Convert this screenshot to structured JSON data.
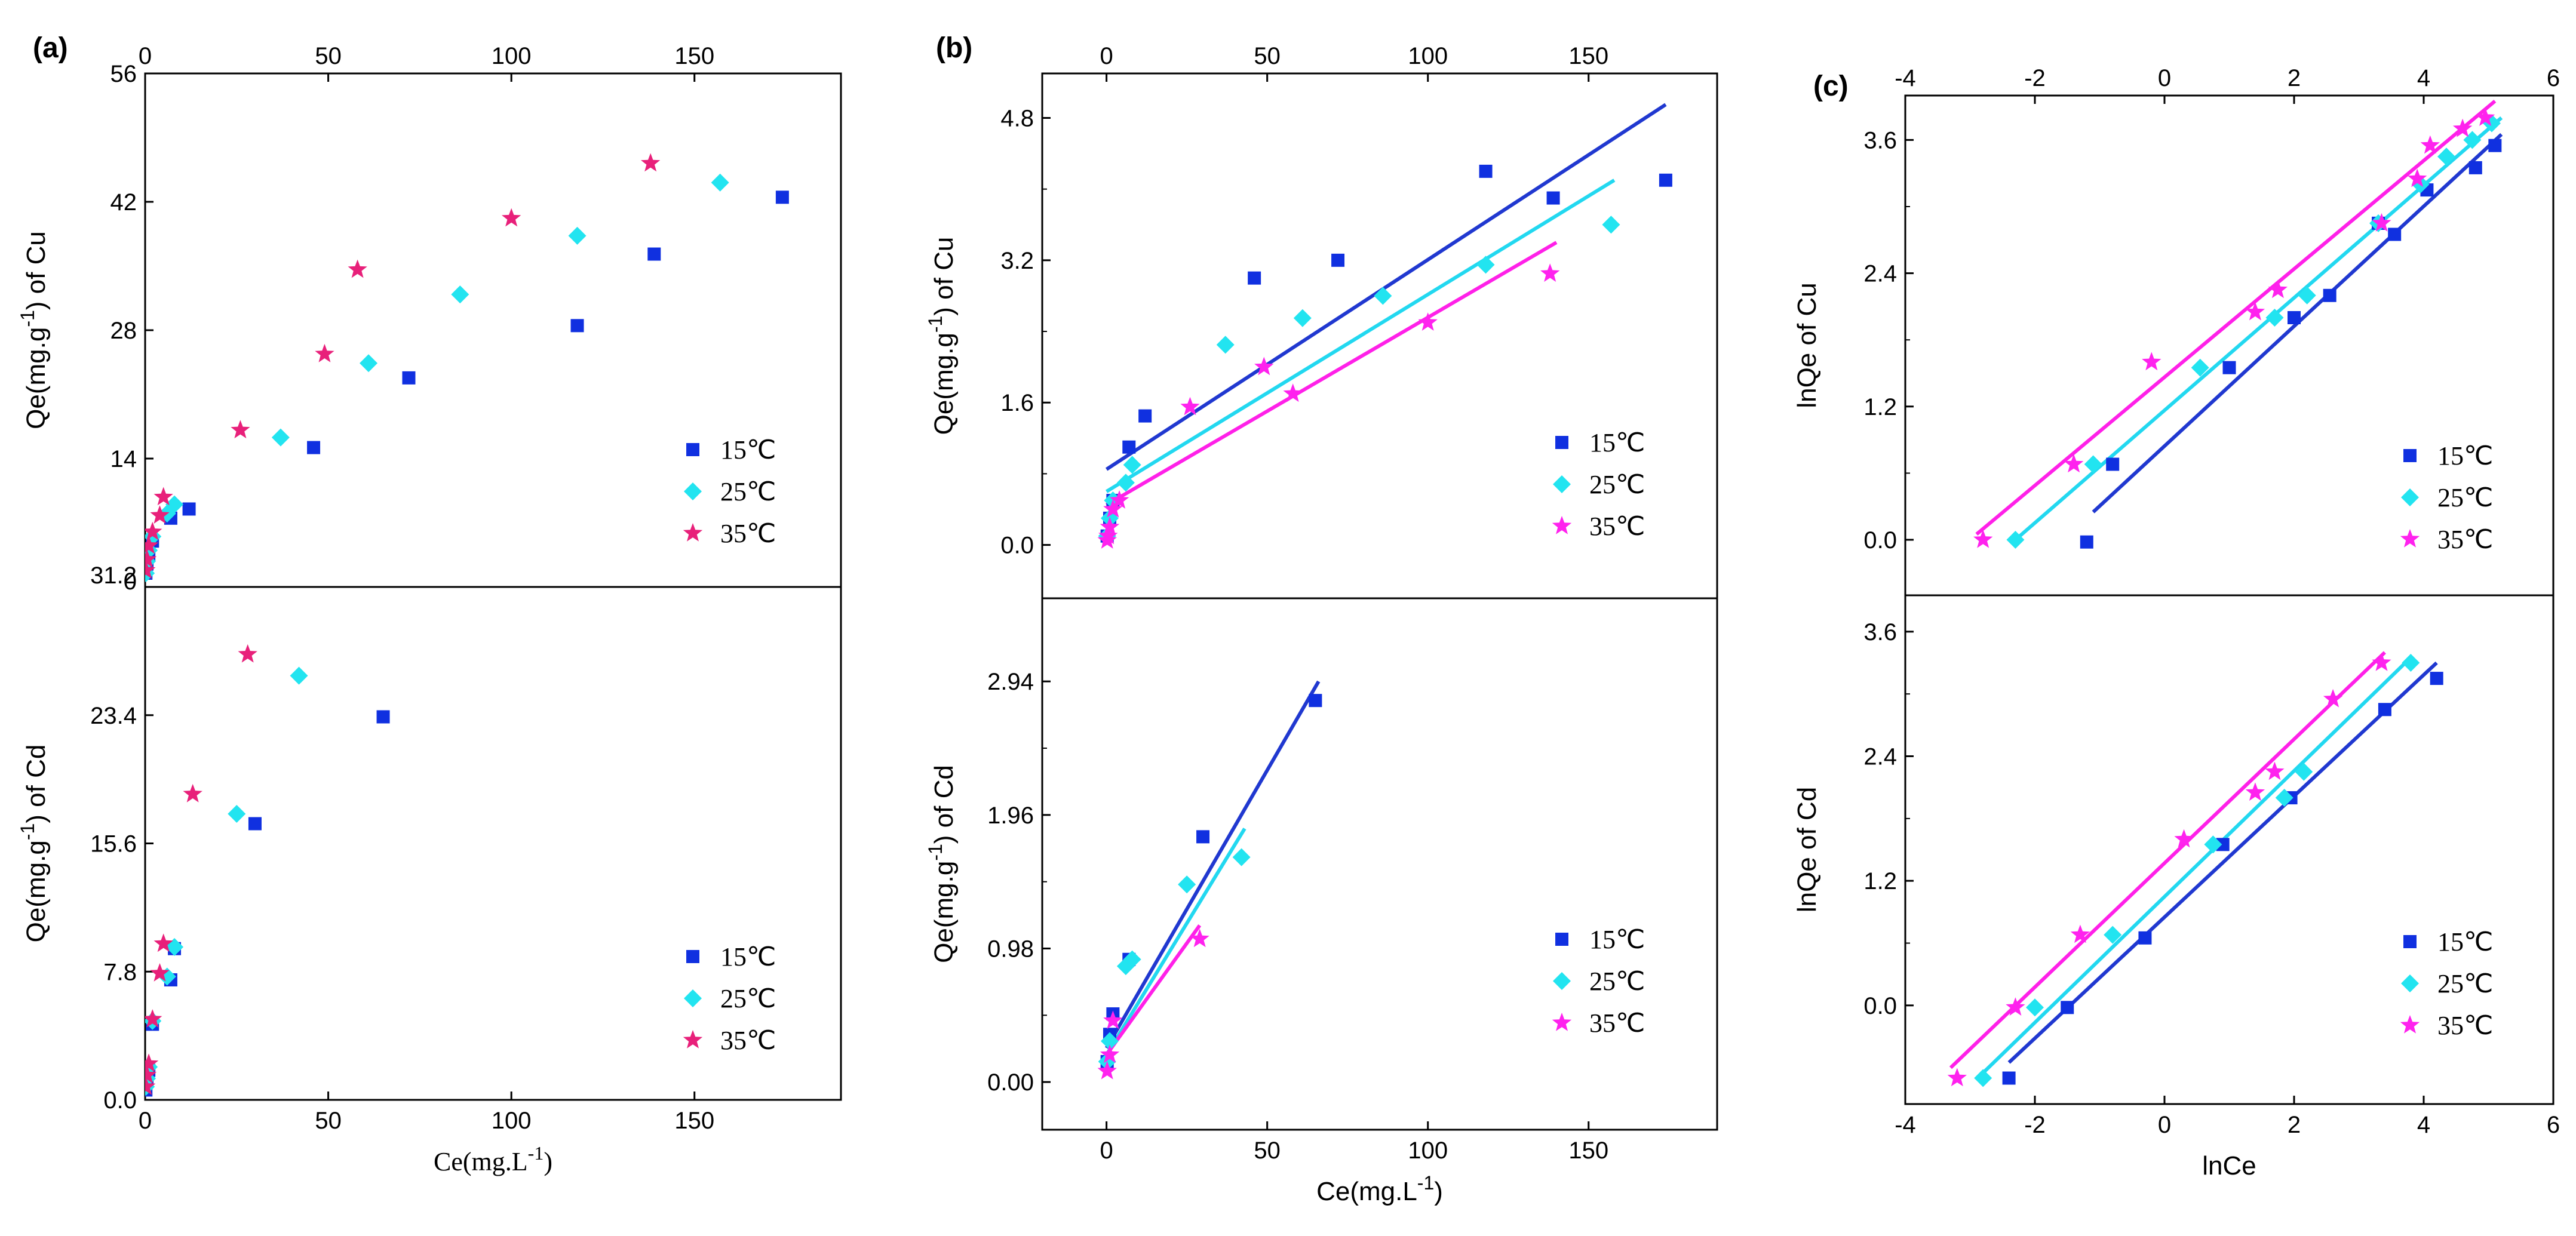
{
  "colors": {
    "c15": "#1030e0",
    "c25": "#22e4f0",
    "c35": "#e8207a",
    "c35b": "#ff22ee",
    "fit15": "#2038d0",
    "fit25": "#22d8f0",
    "fit35": "#ff20e8"
  },
  "legend_labels": [
    "15℃",
    "25℃",
    "35℃"
  ],
  "chart_data": [
    {
      "type": "scatter",
      "panel": "(a)",
      "label": "(a)",
      "subplots": [
        {
          "position": "top",
          "ylabel": "Qe(mg.g⁻¹) of Cu",
          "ylim": [
            0,
            56
          ],
          "yticks": [
            "0",
            "14",
            "28",
            "42",
            "56"
          ],
          "xlim": [
            0,
            190
          ],
          "xticks": [
            "0",
            "50",
            "100",
            "150"
          ],
          "series": [
            {
              "name": "15℃",
              "x": [
                0.2,
                0.5,
                1,
                2,
                7,
                12,
                46,
                72,
                118,
                139,
                174
              ],
              "y": [
                1.5,
                2.5,
                3.5,
                5,
                7.5,
                8.5,
                15.2,
                22.8,
                28.5,
                36.3,
                42.5
              ]
            },
            {
              "name": "25℃",
              "x": [
                0.2,
                0.5,
                1,
                2,
                6,
                8,
                37,
                61,
                86,
                118,
                157
              ],
              "y": [
                1.5,
                2.8,
                4,
                5.5,
                8,
                9,
                16.3,
                24.4,
                31.9,
                38.3,
                44.1
              ]
            },
            {
              "name": "35℃",
              "x": [
                0.2,
                0.5,
                1,
                2,
                4,
                5,
                26,
                49,
                58,
                100,
                138
              ],
              "y": [
                1.8,
                3,
                4.5,
                6,
                7.8,
                9.8,
                17.1,
                25.4,
                34.6,
                40.2,
                46.2
              ]
            }
          ]
        },
        {
          "position": "bottom",
          "ylabel": "Qe(mg.g⁻¹) of Cd",
          "ylim": [
            0,
            31.2
          ],
          "yticks": [
            "0.0",
            "7.8",
            "15.6",
            "23.4",
            "31.2"
          ],
          "xlim": [
            0,
            190
          ],
          "xticks": [
            "0",
            "50",
            "100",
            "150"
          ],
          "xlabel": "Ce(mg.L⁻¹)",
          "series": [
            {
              "name": "15℃",
              "x": [
                0.2,
                0.5,
                1,
                2,
                7,
                8,
                30,
                65
              ],
              "y": [
                0.6,
                1.2,
                1.8,
                4.6,
                7.3,
                9.2,
                16.8,
                23.3
              ]
            },
            {
              "name": "25℃",
              "x": [
                0.2,
                0.5,
                1,
                2,
                6,
                8,
                25,
                42
              ],
              "y": [
                0.8,
                1.3,
                2,
                4.8,
                7.5,
                9.3,
                17.4,
                25.8
              ]
            },
            {
              "name": "35℃",
              "x": [
                0.2,
                0.5,
                1,
                2,
                4,
                5,
                13,
                28
              ],
              "y": [
                0.8,
                1.5,
                2.2,
                4.9,
                7.7,
                9.5,
                18.6,
                27.1
              ]
            }
          ]
        }
      ]
    },
    {
      "type": "scatter",
      "panel": "(b)",
      "label": "(b)",
      "subplots": [
        {
          "position": "top",
          "ylabel": "Qe(mg.g⁻¹) of Cu",
          "ylim": [
            -0.6,
            5.3
          ],
          "yticks": [
            "0.0",
            "1.6",
            "3.2",
            "4.8"
          ],
          "ytick_values": [
            0,
            1.6,
            3.2,
            4.8
          ],
          "xlim": [
            -20,
            190
          ],
          "xticks": [
            "0",
            "50",
            "100",
            "150"
          ],
          "xtick_values": [
            0,
            50,
            100,
            150
          ],
          "series": [
            {
              "name": "15℃",
              "x": [
                0.2,
                1,
                2,
                7,
                12,
                46,
                72,
                118,
                139,
                174
              ],
              "y": [
                0.1,
                0.3,
                0.5,
                1.1,
                1.45,
                3.0,
                3.2,
                4.2,
                3.9,
                4.1
              ],
              "fit": [
                [
                  0,
                  0.85
                ],
                [
                  174,
                  4.95
                ]
              ]
            },
            {
              "name": "25℃",
              "x": [
                0.2,
                1,
                2,
                6,
                8,
                37,
                61,
                86,
                118,
                157
              ],
              "y": [
                0.1,
                0.3,
                0.5,
                0.7,
                0.9,
                2.25,
                2.55,
                2.8,
                3.15,
                3.6
              ],
              "fit": [
                [
                  0,
                  0.6
                ],
                [
                  158,
                  4.1
                ]
              ]
            },
            {
              "name": "35℃",
              "x": [
                0.2,
                0.5,
                1,
                2,
                4,
                26,
                49,
                58,
                100,
                138
              ],
              "y": [
                0.05,
                0.1,
                0.2,
                0.4,
                0.5,
                1.55,
                2.0,
                1.7,
                2.5,
                3.05
              ],
              "fit": [
                [
                  0,
                  0.45
                ],
                [
                  140,
                  3.4
                ]
              ]
            }
          ]
        },
        {
          "position": "bottom",
          "ylabel": "Qe(mg.g⁻¹) of Cd",
          "ylim": [
            -0.35,
            3.55
          ],
          "yticks": [
            "0.00",
            "0.98",
            "1.96",
            "2.94"
          ],
          "ytick_values": [
            0,
            0.98,
            1.96,
            2.94
          ],
          "xlim": [
            -20,
            190
          ],
          "xticks": [
            "0",
            "50",
            "100",
            "150"
          ],
          "xtick_values": [
            0,
            50,
            100,
            150
          ],
          "xlabel": "Ce(mg.L⁻¹)",
          "series": [
            {
              "name": "15℃",
              "x": [
                0.2,
                1,
                2,
                7,
                30,
                65
              ],
              "y": [
                0.15,
                0.35,
                0.5,
                0.9,
                1.8,
                2.8
              ],
              "fit": [
                [
                  0,
                  0.25
                ],
                [
                  66,
                  2.94
                ]
              ]
            },
            {
              "name": "25℃",
              "x": [
                0.2,
                1,
                6,
                8,
                25,
                42
              ],
              "y": [
                0.15,
                0.3,
                0.85,
                0.9,
                1.45,
                1.65
              ],
              "fit": [
                [
                  0,
                  0.2
                ],
                [
                  43,
                  1.86
                ]
              ]
            },
            {
              "name": "35℃",
              "x": [
                0.2,
                1,
                2,
                29
              ],
              "y": [
                0.08,
                0.2,
                0.45,
                1.05
              ],
              "fit": [
                [
                  0,
                  0.2
                ],
                [
                  29,
                  1.15
                ]
              ]
            }
          ]
        }
      ]
    },
    {
      "type": "scatter",
      "panel": "(c)",
      "label": "(c)",
      "subplots": [
        {
          "position": "top",
          "ylabel": "lnQe of Cu",
          "ylim": [
            -0.5,
            4.0
          ],
          "yticks": [
            "0.0",
            "1.2",
            "2.4",
            "3.6"
          ],
          "ytick_values": [
            0,
            1.2,
            2.4,
            3.6
          ],
          "xlim": [
            -4,
            6
          ],
          "xticks": [
            "-4",
            "-2",
            "0",
            "2",
            "4",
            "6"
          ],
          "xtick_values": [
            -4,
            -2,
            0,
            2,
            4,
            6
          ],
          "series": [
            {
              "name": "15℃",
              "x": [
                -1.2,
                -0.8,
                1.0,
                2.0,
                2.55,
                3.3,
                3.55,
                4.05,
                4.8,
                5.1
              ],
              "y": [
                -0.02,
                0.68,
                1.55,
                2.0,
                2.2,
                2.85,
                2.75,
                3.15,
                3.35,
                3.55
              ],
              "fit": [
                [
                  -1.1,
                  0.25
                ],
                [
                  5.2,
                  3.65
                ]
              ]
            },
            {
              "name": "25℃",
              "x": [
                -2.3,
                -1.1,
                0.55,
                1.7,
                2.2,
                3.3,
                3.95,
                4.35,
                4.75,
                5.05
              ],
              "y": [
                0.0,
                0.68,
                1.55,
                2.0,
                2.2,
                2.85,
                3.2,
                3.45,
                3.6,
                3.75
              ],
              "fit": [
                [
                  -2.3,
                  0.0
                ],
                [
                  5.2,
                  3.8
                ]
              ]
            },
            {
              "name": "35℃",
              "x": [
                -2.8,
                -1.4,
                -0.2,
                1.4,
                1.75,
                3.35,
                3.9,
                4.1,
                4.6,
                4.95
              ],
              "y": [
                0.0,
                0.68,
                1.6,
                2.05,
                2.25,
                2.85,
                3.25,
                3.55,
                3.7,
                3.8
              ],
              "fit": [
                [
                  -2.9,
                  0.05
                ],
                [
                  5.1,
                  3.95
                ]
              ]
            }
          ]
        },
        {
          "position": "bottom",
          "ylabel": "lnQe of Cd",
          "ylim": [
            -0.95,
            3.95
          ],
          "yticks": [
            "0.0",
            "1.2",
            "2.4",
            "3.6"
          ],
          "ytick_values": [
            0,
            1.2,
            2.4,
            3.6
          ],
          "xlim": [
            -4,
            6
          ],
          "xticks": [
            "-4",
            "-2",
            "0",
            "2",
            "4",
            "6"
          ],
          "xtick_values": [
            -4,
            -2,
            0,
            2,
            4,
            6
          ],
          "xlabel": "lnCe",
          "series": [
            {
              "name": "15℃",
              "x": [
                -2.4,
                -1.5,
                -0.3,
                0.9,
                1.95,
                3.4,
                4.2
              ],
              "y": [
                -0.7,
                -0.02,
                0.65,
                1.55,
                2.0,
                2.85,
                3.15
              ],
              "fit": [
                [
                  -2.4,
                  -0.55
                ],
                [
                  4.2,
                  3.3
                ]
              ]
            },
            {
              "name": "25℃",
              "x": [
                -2.8,
                -2.0,
                -0.8,
                0.75,
                1.85,
                2.15,
                3.8
              ],
              "y": [
                -0.7,
                -0.02,
                0.68,
                1.55,
                2.0,
                2.25,
                3.3
              ],
              "fit": [
                [
                  -2.8,
                  -0.65
                ],
                [
                  3.8,
                  3.35
                ]
              ]
            },
            {
              "name": "35℃",
              "x": [
                -3.2,
                -2.3,
                -1.3,
                0.3,
                1.4,
                1.7,
                2.6,
                3.35
              ],
              "y": [
                -0.7,
                -0.02,
                0.68,
                1.6,
                2.05,
                2.25,
                2.95,
                3.3
              ],
              "fit": [
                [
                  -3.3,
                  -0.6
                ],
                [
                  3.4,
                  3.4
                ]
              ]
            }
          ]
        }
      ]
    }
  ]
}
